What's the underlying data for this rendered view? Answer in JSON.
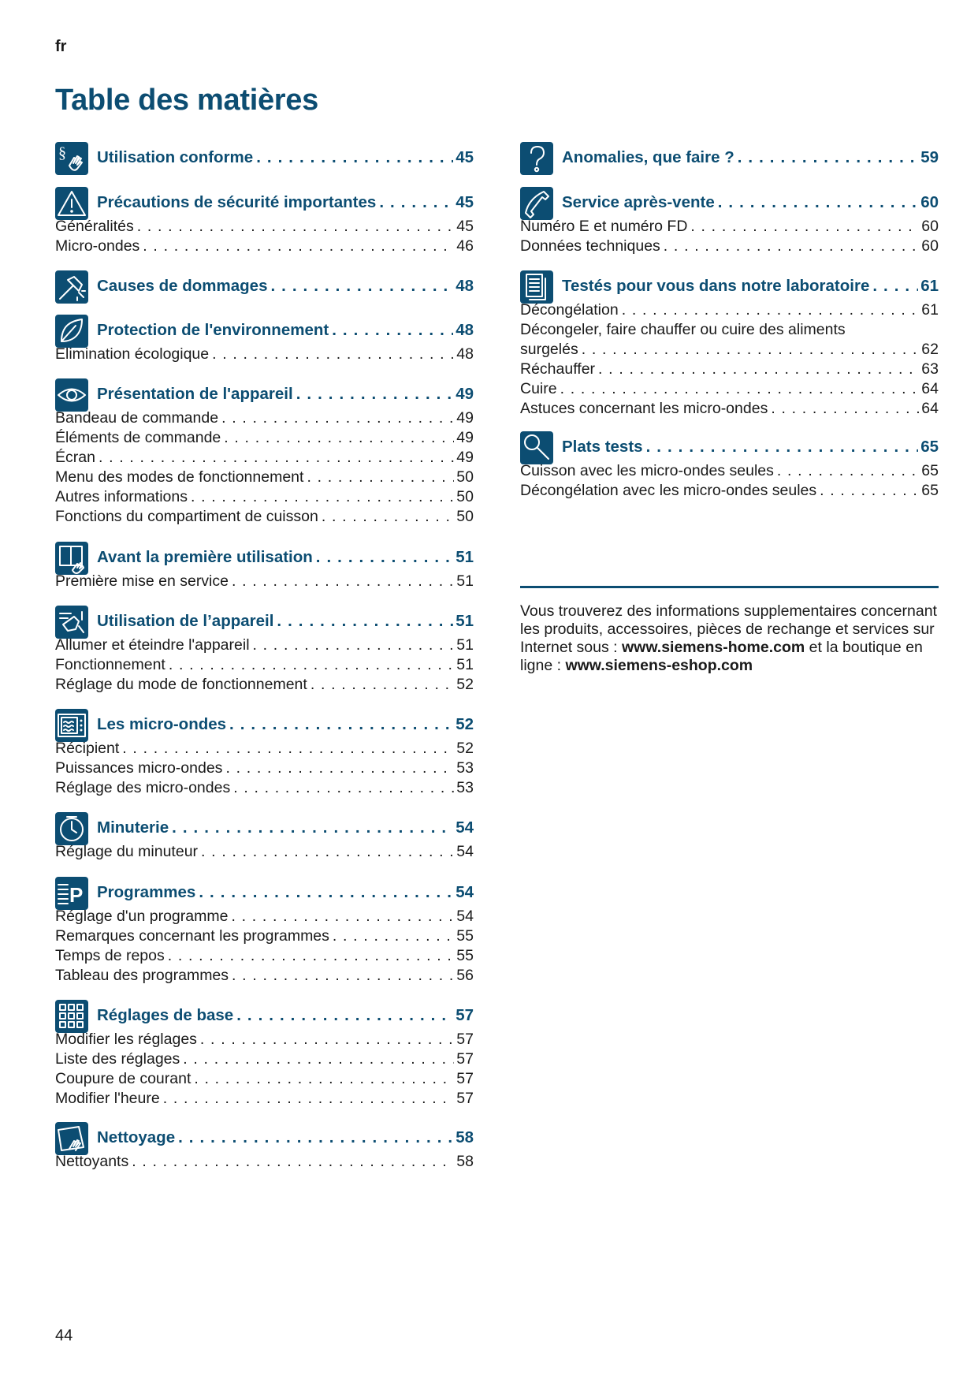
{
  "header": {
    "language": "fr",
    "title": "Table des matières"
  },
  "colors": {
    "accent": "#0c4d72",
    "text": "#1a1a1a"
  },
  "sections": [
    {
      "column": "left",
      "icon": "paragraph-hand-icon",
      "heading": "Utilisation conforme",
      "page": "45",
      "items": []
    },
    {
      "column": "left",
      "icon": "warning-triangle-icon",
      "heading": "Précautions de sécurité importantes",
      "page": "45",
      "items": [
        {
          "label": "Généralités",
          "page": "45"
        },
        {
          "label": "Micro-ondes",
          "page": "46"
        }
      ]
    },
    {
      "column": "left",
      "icon": "damage-hammer-icon",
      "heading": "Causes de dommages",
      "page": "48",
      "items": []
    },
    {
      "column": "left",
      "icon": "leaf-icon",
      "heading": "Protection de l'environnement",
      "page": "48",
      "items": [
        {
          "label": "Elimination écologique",
          "page": "48"
        }
      ]
    },
    {
      "column": "left",
      "icon": "eye-icon",
      "heading": "Présentation de l'appareil",
      "page": "49",
      "items": [
        {
          "label": "Bandeau de commande",
          "page": "49"
        },
        {
          "label": "Éléments de commande",
          "page": "49"
        },
        {
          "label": "Écran",
          "page": "49"
        },
        {
          "label": "Menu des modes de fonctionnement",
          "page": "50"
        },
        {
          "label": "Autres informations",
          "page": "50"
        },
        {
          "label": "Fonctions du compartiment de cuisson",
          "page": "50"
        }
      ]
    },
    {
      "column": "left",
      "icon": "manual-hand-icon",
      "heading": "Avant la première utilisation",
      "page": "51",
      "items": [
        {
          "label": "Première mise en service",
          "page": "51"
        }
      ]
    },
    {
      "column": "left",
      "icon": "hand-operation-icon",
      "heading": "Utilisation de l’appareil",
      "page": "51",
      "items": [
        {
          "label": "Allumer et éteindre l'appareil",
          "page": "51"
        },
        {
          "label": "Fonctionnement",
          "page": "51"
        },
        {
          "label": "Réglage du mode de fonctionnement",
          "page": "52"
        }
      ]
    },
    {
      "column": "left",
      "icon": "microwave-icon",
      "heading": "Les micro-ondes",
      "page": "52",
      "items": [
        {
          "label": "Récipient",
          "page": "52"
        },
        {
          "label": "Puissances micro-ondes",
          "page": "53"
        },
        {
          "label": "Réglage des micro-ondes",
          "page": "53"
        }
      ]
    },
    {
      "column": "left",
      "icon": "clock-icon",
      "heading": "Minuterie",
      "page": "54",
      "items": [
        {
          "label": "Réglage du minuteur",
          "page": "54"
        }
      ]
    },
    {
      "column": "left",
      "icon": "program-p-icon",
      "heading": "Programmes",
      "page": "54",
      "items": [
        {
          "label": "Réglage d'un programme",
          "page": "54"
        },
        {
          "label": "Remarques concernant les programmes",
          "page": "55"
        },
        {
          "label": "Temps de repos",
          "page": "55"
        },
        {
          "label": "Tableau des programmes",
          "page": "56"
        }
      ]
    },
    {
      "column": "left",
      "icon": "settings-grid-icon",
      "heading": "Réglages de base",
      "page": "57",
      "items": [
        {
          "label": "Modifier les réglages",
          "page": "57"
        },
        {
          "label": "Liste des réglages",
          "page": "57"
        },
        {
          "label": "Coupure de courant",
          "page": "57"
        },
        {
          "label": "Modifier l'heure",
          "page": "57"
        }
      ]
    },
    {
      "column": "left",
      "icon": "cleaning-icon",
      "heading": "Nettoyage",
      "page": "58",
      "items": [
        {
          "label": "Nettoyants",
          "page": "58"
        }
      ]
    },
    {
      "column": "right",
      "icon": "question-icon",
      "heading": "Anomalies, que faire ?",
      "page": "59",
      "items": []
    },
    {
      "column": "right",
      "icon": "phone-icon",
      "heading": "Service après-vente",
      "page": "60",
      "items": [
        {
          "label": "Numéro E et numéro FD",
          "page": "60"
        },
        {
          "label": "Données techniques",
          "page": "60"
        }
      ]
    },
    {
      "column": "right",
      "icon": "document-icon",
      "heading": "Testés pour vous dans notre laboratoire",
      "page": "61",
      "items": [
        {
          "label": "Décongélation",
          "page": "61"
        },
        {
          "label_line1": "Décongeler, faire chauffer ou cuire des aliments",
          "label": "surgelés",
          "page": "62"
        },
        {
          "label": "Réchauffer",
          "page": "63"
        },
        {
          "label": "Cuire",
          "page": "64"
        },
        {
          "label": "Astuces concernant les micro-ondes",
          "page": "64"
        }
      ]
    },
    {
      "column": "right",
      "icon": "magnifier-icon",
      "heading": "Plats tests",
      "page": "65",
      "items": [
        {
          "label": "Cuisson avec les micro-ondes seules",
          "page": "65"
        },
        {
          "label": "Décongélation avec les micro-ondes seules",
          "page": "65"
        }
      ]
    }
  ],
  "info": {
    "text1": "Vous trouverez des informations supplementaires concernant les produits, accessoires, pièces de rechange et services sur Internet sous : ",
    "link1": "www.siemens-home.com",
    "text2": " et la boutique en ligne : ",
    "link2": "www.siemens-eshop.com"
  },
  "footer": {
    "page_number": "44"
  }
}
